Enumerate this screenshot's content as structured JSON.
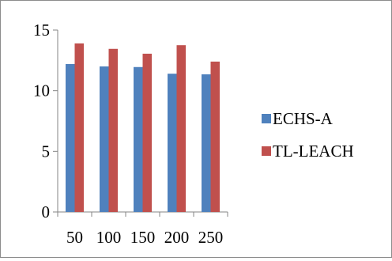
{
  "chart_data": {
    "type": "bar",
    "title": "",
    "xlabel": "",
    "ylabel": "",
    "categories": [
      "50",
      "100",
      "150",
      "200",
      "250"
    ],
    "series": [
      {
        "name": "ECHS-A",
        "color": "#4f81bd",
        "values": [
          12.2,
          12.0,
          11.95,
          11.4,
          11.35
        ]
      },
      {
        "name": "TL-LEACH",
        "color": "#c0504d",
        "values": [
          13.9,
          13.45,
          13.05,
          13.75,
          12.4
        ]
      }
    ],
    "ylim": [
      0,
      15
    ],
    "yticks": [
      "0",
      "5",
      "10",
      "15"
    ],
    "grid": false,
    "legend_position": "right"
  }
}
